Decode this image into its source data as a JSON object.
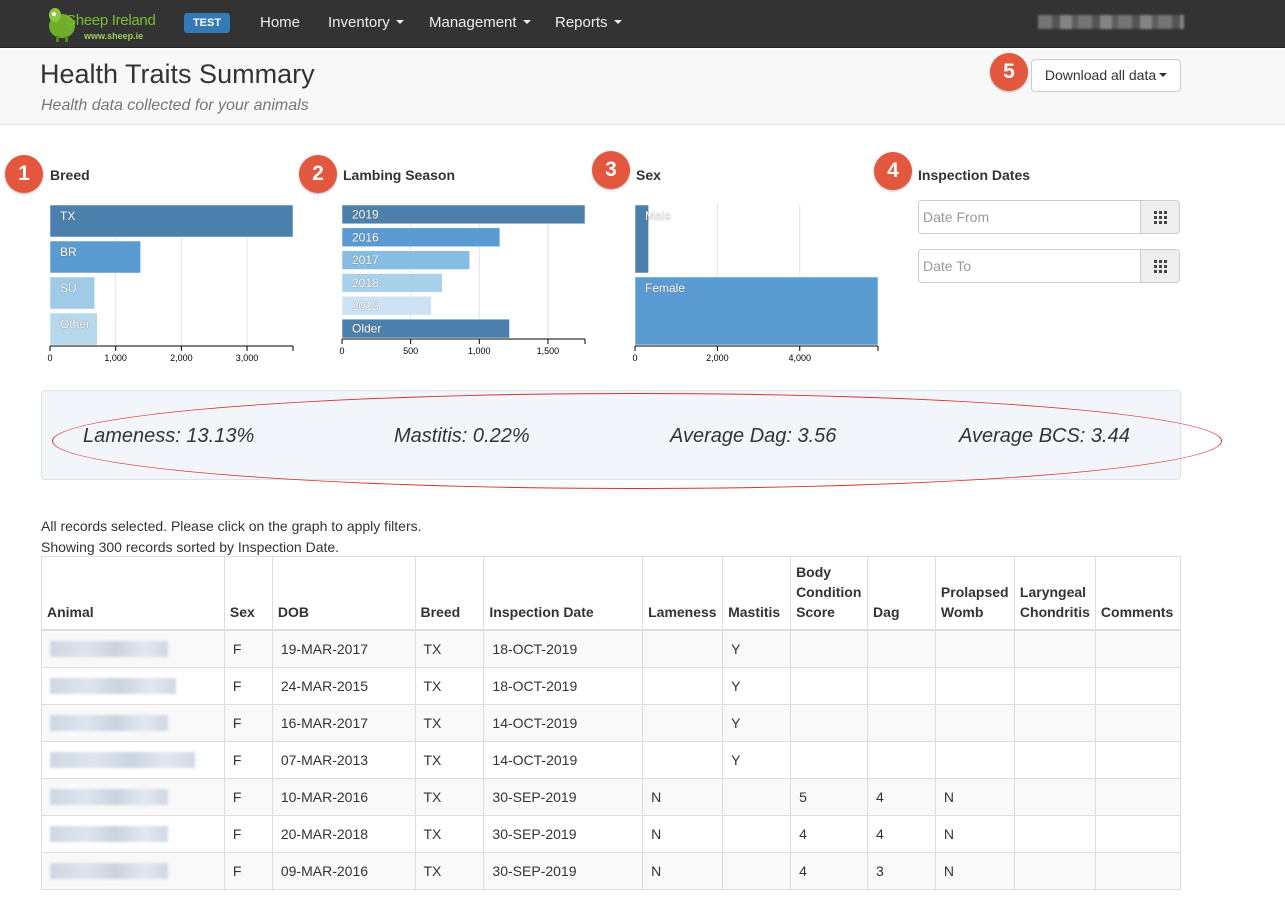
{
  "nav": {
    "logo_name": "Sheep Ireland",
    "logo_url": "www.sheep.ie",
    "env_badge": "TEST",
    "items": [
      "Home",
      "Inventory",
      "Management",
      "Reports"
    ]
  },
  "header": {
    "title": "Health Traits Summary",
    "subtitle": "Health data collected for your animals",
    "download_label": "Download all data"
  },
  "markers": [
    "1",
    "2",
    "3",
    "4",
    "5"
  ],
  "filters": {
    "breed_title": "Breed",
    "season_title": "Lambing Season",
    "sex_title": "Sex",
    "dates_title": "Inspection Dates",
    "date_from_placeholder": "Date From",
    "date_to_placeholder": "Date To"
  },
  "chart_data": [
    {
      "type": "bar",
      "orientation": "horizontal",
      "title": "Breed",
      "categories": [
        "TX",
        "BR",
        "SU",
        "Other"
      ],
      "values": [
        3700,
        1380,
        680,
        720
      ],
      "xlim": [
        0,
        3700
      ],
      "ticks": [
        0,
        1000,
        2000,
        3000
      ],
      "tick_labels": [
        "0",
        "1,000",
        "2,000",
        "3,000"
      ],
      "colors": [
        "#4a80ab",
        "#5a9bd1",
        "#9fcbe6",
        "#b6d8ec"
      ],
      "grid": true
    },
    {
      "type": "bar",
      "orientation": "horizontal",
      "title": "Lambing Season",
      "categories": [
        "2019",
        "2016",
        "2017",
        "2018",
        "2015",
        "Older"
      ],
      "values": [
        1770,
        1150,
        930,
        730,
        650,
        1220
      ],
      "xlim": [
        0,
        1770
      ],
      "ticks": [
        0,
        500,
        1000,
        1500
      ],
      "tick_labels": [
        "0",
        "500",
        "1,000",
        "1,500"
      ],
      "colors": [
        "#4a80ab",
        "#5a9bd1",
        "#86bde0",
        "#a9d1ea",
        "#cde2f2",
        "#4a80ab"
      ],
      "grid": true
    },
    {
      "type": "bar",
      "orientation": "horizontal",
      "title": "Sex",
      "categories": [
        "Male",
        "Female"
      ],
      "values": [
        330,
        5900
      ],
      "xlim": [
        0,
        5900
      ],
      "ticks": [
        0,
        2000,
        4000
      ],
      "tick_labels": [
        "0",
        "2,000",
        "4,000"
      ],
      "colors": [
        "#4a80ab",
        "#5a9bd1"
      ],
      "grid": true
    }
  ],
  "stats": {
    "lameness": "Lameness: 13.13%",
    "mastitis": "Mastitis: 0.22%",
    "dag": "Average Dag: 3.56",
    "bcs": "Average BCS: 3.44"
  },
  "info": {
    "line1": "All records selected. Please click on the graph to apply filters.",
    "line2": "Showing 300 records sorted by Inspection Date."
  },
  "table": {
    "headers": {
      "animal": "Animal",
      "sex": "Sex",
      "dob": "DOB",
      "breed": "Breed",
      "inspection_date": "Inspection Date",
      "lameness": "Lameness",
      "mastitis": "Mastitis",
      "bcs_1": "Body",
      "bcs_2": "Condition",
      "bcs_3": "Score",
      "dag": "Dag",
      "prolapsed_1": "Prolapsed",
      "prolapsed_2": "Womb",
      "laryngeal_1": "Laryngeal",
      "laryngeal_2": "Chondritis",
      "comments": "Comments"
    },
    "rows": [
      {
        "sex": "F",
        "dob": "19-MAR-2017",
        "breed": "TX",
        "date": "18-OCT-2019",
        "lameness": "",
        "mastitis": "Y",
        "bcs": "",
        "dag": "",
        "prolapsed": "",
        "laryngeal": "",
        "comments": ""
      },
      {
        "sex": "F",
        "dob": "24-MAR-2015",
        "breed": "TX",
        "date": "18-OCT-2019",
        "lameness": "",
        "mastitis": "Y",
        "bcs": "",
        "dag": "",
        "prolapsed": "",
        "laryngeal": "",
        "comments": ""
      },
      {
        "sex": "F",
        "dob": "16-MAR-2017",
        "breed": "TX",
        "date": "14-OCT-2019",
        "lameness": "",
        "mastitis": "Y",
        "bcs": "",
        "dag": "",
        "prolapsed": "",
        "laryngeal": "",
        "comments": ""
      },
      {
        "sex": "F",
        "dob": "07-MAR-2013",
        "breed": "TX",
        "date": "14-OCT-2019",
        "lameness": "",
        "mastitis": "Y",
        "bcs": "",
        "dag": "",
        "prolapsed": "",
        "laryngeal": "",
        "comments": ""
      },
      {
        "sex": "F",
        "dob": "10-MAR-2016",
        "breed": "TX",
        "date": "30-SEP-2019",
        "lameness": "N",
        "mastitis": "",
        "bcs": "5",
        "dag": "4",
        "prolapsed": "N",
        "laryngeal": "",
        "comments": ""
      },
      {
        "sex": "F",
        "dob": "20-MAR-2018",
        "breed": "TX",
        "date": "30-SEP-2019",
        "lameness": "N",
        "mastitis": "",
        "bcs": "4",
        "dag": "4",
        "prolapsed": "N",
        "laryngeal": "",
        "comments": ""
      },
      {
        "sex": "F",
        "dob": "09-MAR-2016",
        "breed": "TX",
        "date": "30-SEP-2019",
        "lameness": "N",
        "mastitis": "",
        "bcs": "4",
        "dag": "3",
        "prolapsed": "N",
        "laryngeal": "",
        "comments": ""
      }
    ]
  }
}
